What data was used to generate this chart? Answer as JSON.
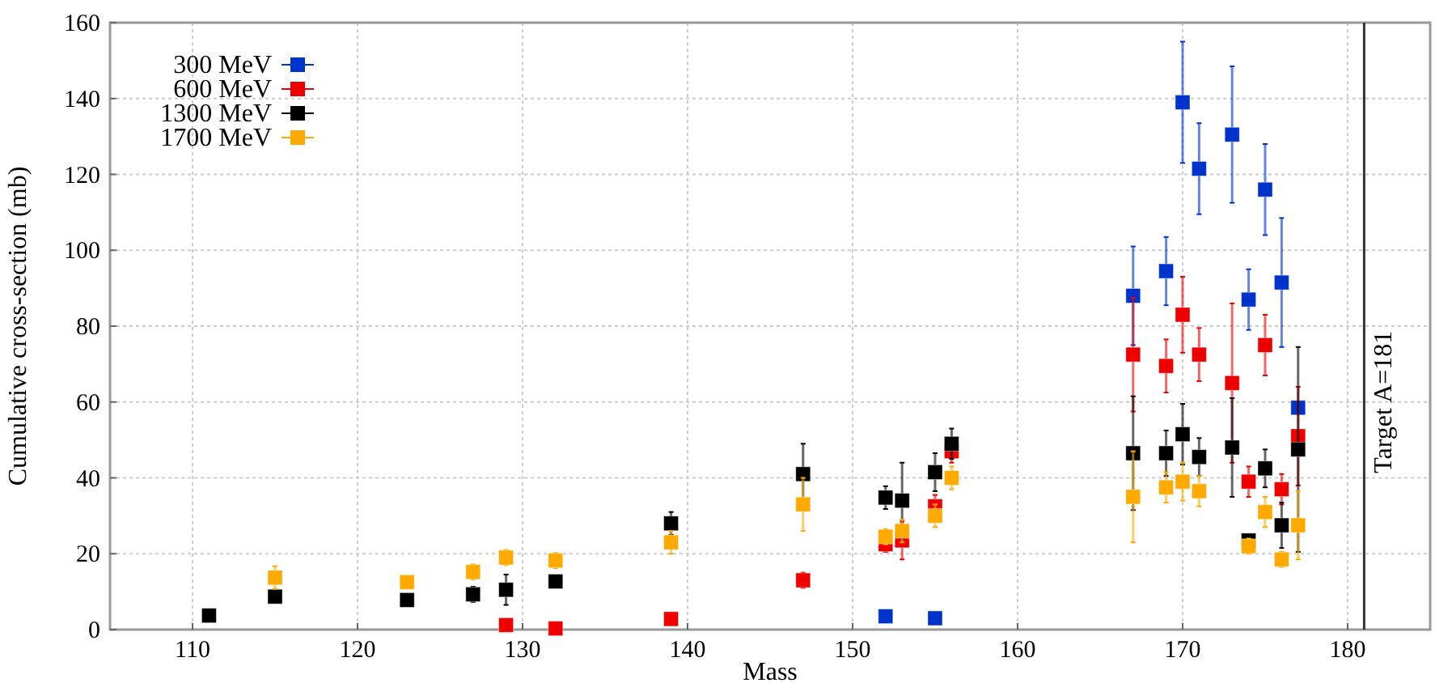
{
  "chart_data": {
    "type": "scatter",
    "xlabel": "Mass",
    "ylabel": "Cumulative cross-section (mb)",
    "xlim": [
      105,
      185
    ],
    "xticks": [
      110,
      120,
      130,
      140,
      150,
      160,
      170,
      180
    ],
    "ylim": [
      0,
      160
    ],
    "yticks": [
      0,
      20,
      40,
      60,
      80,
      100,
      120,
      140,
      160
    ],
    "grid": true,
    "legend": "top left",
    "marker": "square",
    "ref_lines": [
      {
        "axis": "x",
        "value": 181,
        "label": "Target A=181",
        "color": "#333333"
      }
    ],
    "series": [
      {
        "name": "300 MeV",
        "color": "#0033cc",
        "x": [
          152,
          155,
          167,
          169,
          170,
          171,
          173,
          174,
          175,
          176,
          177
        ],
        "values": [
          3.5,
          3,
          88,
          94.5,
          139,
          121.5,
          130.5,
          87,
          116,
          91.5,
          58.5
        ],
        "errors": [
          null,
          null,
          13,
          9,
          16,
          12,
          18,
          8,
          12,
          17,
          null
        ]
      },
      {
        "name": "600 MeV",
        "color": "#ee0000",
        "x": [
          129,
          132,
          139,
          147,
          152,
          153,
          155,
          156,
          167,
          169,
          170,
          171,
          173,
          174,
          175,
          176,
          177
        ],
        "values": [
          1.2,
          0.3,
          2.8,
          13,
          22.5,
          23.5,
          32.5,
          47,
          72.5,
          69.5,
          83,
          72.5,
          65,
          39,
          75,
          37,
          51
        ],
        "errors": [
          null,
          null,
          null,
          2,
          2,
          5,
          3,
          3,
          15,
          7,
          10,
          7,
          21,
          4,
          8,
          4,
          13
        ]
      },
      {
        "name": "1300 MeV",
        "color": "#000000",
        "x": [
          111,
          115,
          123,
          127,
          129,
          132,
          139,
          147,
          152,
          153,
          155,
          156,
          167,
          169,
          170,
          171,
          173,
          174,
          175,
          176,
          177
        ],
        "values": [
          3.7,
          8.7,
          7.8,
          9.3,
          10.5,
          12.7,
          28,
          41,
          34.8,
          34,
          41.5,
          49,
          46.5,
          46.5,
          51.5,
          45.5,
          48,
          23.5,
          42.5,
          27.5,
          47.5
        ],
        "errors": [
          null,
          null,
          null,
          2,
          4,
          null,
          3,
          8,
          3,
          10,
          5,
          4,
          15,
          6,
          8,
          5,
          13,
          1,
          5,
          6,
          27
        ]
      },
      {
        "name": "1700 MeV",
        "color": "#ffaa00",
        "x": [
          115,
          123,
          127,
          129,
          132,
          139,
          147,
          152,
          153,
          155,
          156,
          167,
          169,
          170,
          171,
          174,
          175,
          176,
          177
        ],
        "values": [
          13.7,
          12.5,
          15.2,
          19,
          18.2,
          23,
          33,
          24.5,
          26,
          30,
          40,
          35,
          37.5,
          39,
          36.5,
          22,
          31,
          18.5,
          27.5
        ],
        "errors": [
          3,
          null,
          2,
          2,
          2,
          3,
          7,
          2,
          3,
          3,
          3,
          12,
          4,
          5,
          4,
          2,
          4,
          2,
          9
        ]
      }
    ]
  }
}
